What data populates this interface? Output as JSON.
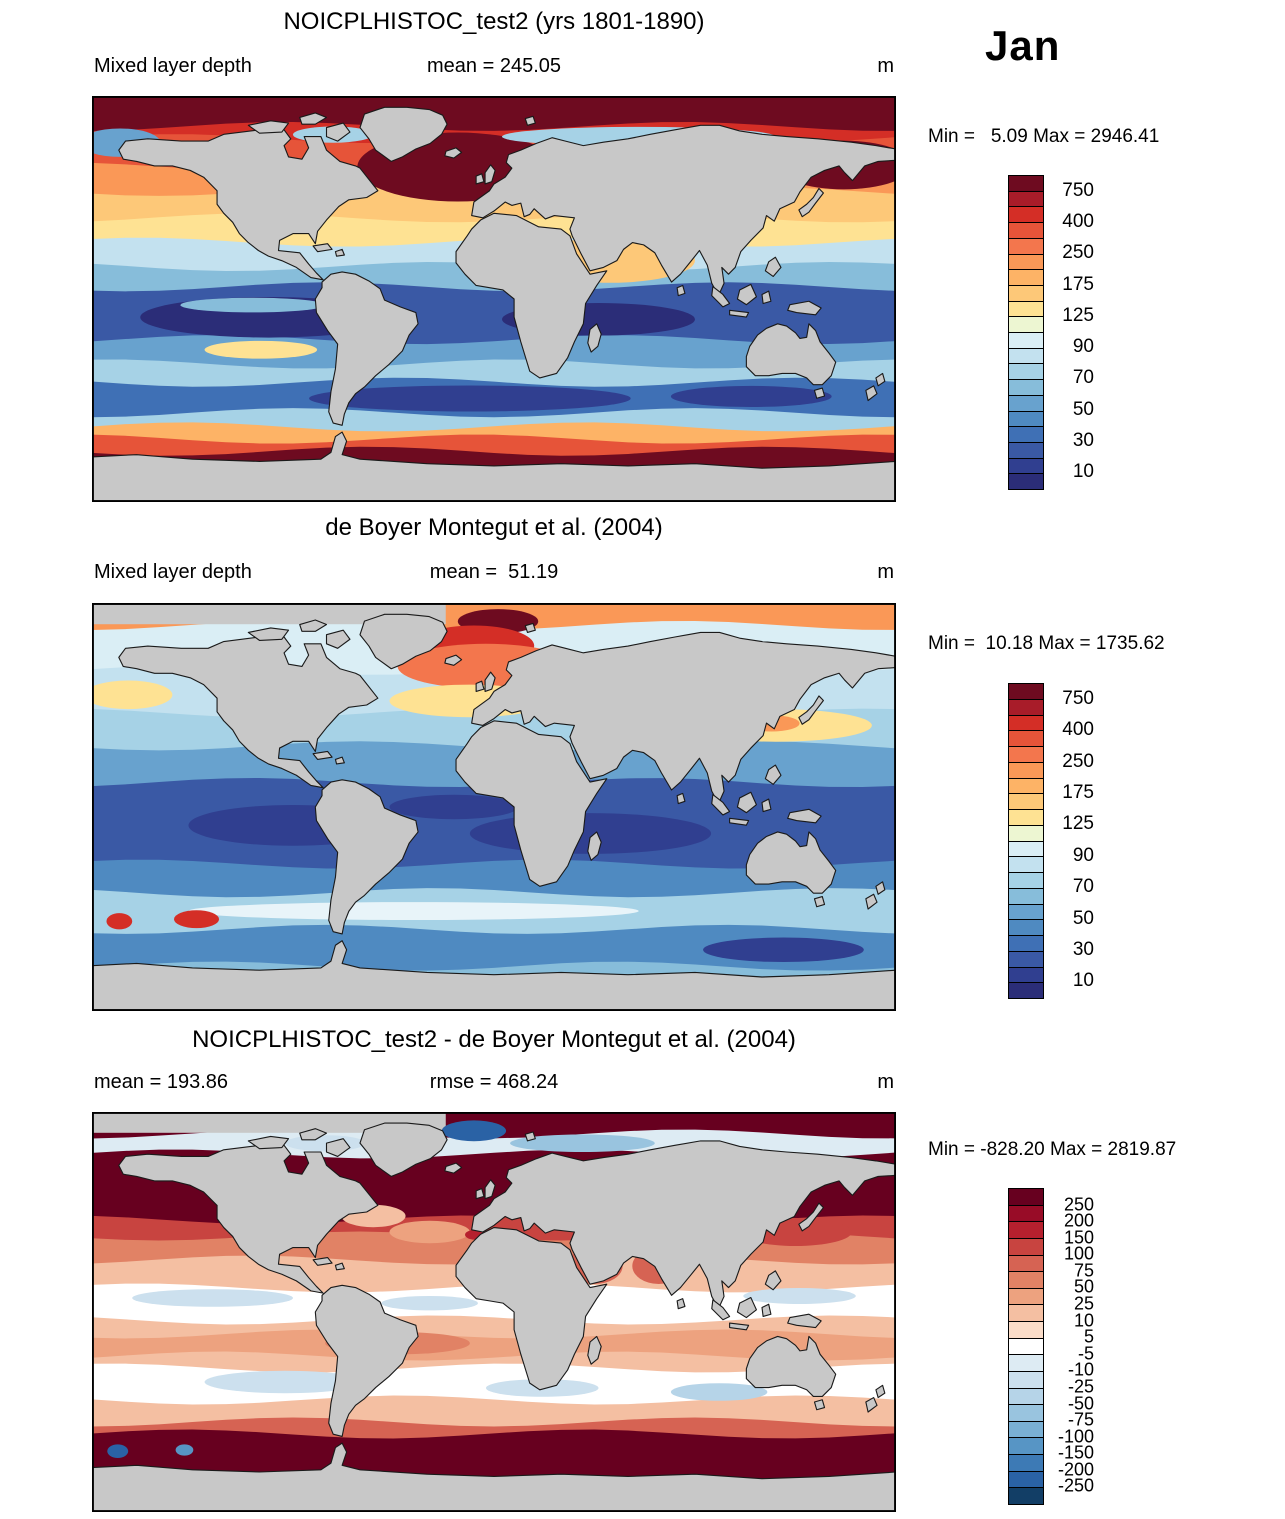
{
  "month_label": "Jan",
  "chart_data": [
    {
      "type": "heatmap",
      "title": "NOICPLHISTOC_test2 (yrs 1801-1890)",
      "left_label": "Mixed layer depth",
      "center_label": "mean = 245.05",
      "unit_label": "m",
      "minmax_label": "Min =   5.09 Max = 2946.41",
      "mean": 245.05,
      "min": 5.09,
      "max": 2946.41,
      "colorbar": {
        "tick_labels": [
          "750",
          "400",
          "250",
          "175",
          "125",
          "90",
          "70",
          "50",
          "30",
          "10"
        ],
        "tick_boundaries": [
          1,
          3,
          5,
          7,
          9,
          11,
          13,
          15,
          17,
          19
        ],
        "colors": [
          "#6e0b20",
          "#a81c29",
          "#d42e26",
          "#e65439",
          "#f3764d",
          "#fa9857",
          "#fdb366",
          "#fdc878",
          "#fee293",
          "#edf6d2",
          "#daeef5",
          "#c3e1ef",
          "#a6d2e6",
          "#87bdda",
          "#68a2ce",
          "#4f8ac1",
          "#3f70b5",
          "#3a59a5",
          "#303f90",
          "#2b2d78"
        ]
      },
      "map": {
        "bands": [
          [
            0.0,
            0.075,
            "#6e0b20"
          ],
          [
            0.075,
            0.105,
            "#d42e26"
          ],
          [
            0.105,
            0.175,
            "#e65439"
          ],
          [
            0.175,
            0.235,
            "#fa9857"
          ],
          [
            0.235,
            0.3,
            "#fdc878"
          ],
          [
            0.3,
            0.36,
            "#fee293"
          ],
          [
            0.36,
            0.42,
            "#c3e1ef"
          ],
          [
            0.42,
            0.47,
            "#87bdda"
          ],
          [
            0.47,
            0.6,
            "#3a59a5"
          ],
          [
            0.6,
            0.66,
            "#68a2ce"
          ],
          [
            0.66,
            0.705,
            "#a6d2e6"
          ],
          [
            0.705,
            0.78,
            "#3f70b5"
          ],
          [
            0.78,
            0.815,
            "#a6d2e6"
          ],
          [
            0.815,
            0.845,
            "#fdb366"
          ],
          [
            0.845,
            0.875,
            "#e65439"
          ],
          [
            0.875,
            0.96,
            "#6e0b20"
          ],
          [
            0.96,
            1.0,
            "#a81c29"
          ]
        ],
        "features": [
          [
            "e",
            0.455,
            0.175,
            0.125,
            0.085,
            "#6e0b20"
          ],
          [
            "e",
            0.935,
            0.17,
            0.085,
            0.06,
            "#6e0b20"
          ],
          [
            "e",
            0.035,
            0.115,
            0.05,
            0.035,
            "#68a2ce"
          ],
          [
            "e",
            0.68,
            0.1,
            0.17,
            0.024,
            "#a6d2e6"
          ],
          [
            "e",
            0.3,
            0.095,
            0.05,
            0.02,
            "#a6d2e6"
          ],
          [
            "e",
            0.22,
            0.545,
            0.16,
            0.05,
            "#2b2d78"
          ],
          [
            "e",
            0.63,
            0.55,
            0.12,
            0.04,
            "#2b2d78"
          ],
          [
            "e",
            0.2,
            0.515,
            0.09,
            0.018,
            "#87bdda"
          ],
          [
            "e",
            0.645,
            0.405,
            0.105,
            0.055,
            "#fdc878"
          ],
          [
            "e",
            0.21,
            0.625,
            0.07,
            0.022,
            "#fee293"
          ],
          [
            "e",
            0.47,
            0.745,
            0.2,
            0.032,
            "#303f90"
          ],
          [
            "e",
            0.82,
            0.74,
            0.1,
            0.026,
            "#303f90"
          ],
          [
            "e",
            0.065,
            0.945,
            0.03,
            0.012,
            "#fa9857"
          ],
          [
            "e",
            0.175,
            0.952,
            0.025,
            0.01,
            "#fa9857"
          ],
          [
            "e",
            0.56,
            0.945,
            0.03,
            0.012,
            "#fa9857"
          ]
        ]
      }
    },
    {
      "type": "heatmap",
      "title": "de Boyer Montegut et al. (2004)",
      "left_label": "Mixed layer depth",
      "center_label": "mean =  51.19",
      "unit_label": "m",
      "minmax_label": "Min =  10.18 Max = 1735.62",
      "mean": 51.19,
      "min": 10.18,
      "max": 1735.62,
      "colorbar": {
        "tick_labels": [
          "750",
          "400",
          "250",
          "175",
          "125",
          "90",
          "70",
          "50",
          "30",
          "10"
        ],
        "tick_boundaries": [
          1,
          3,
          5,
          7,
          9,
          11,
          13,
          15,
          17,
          19
        ],
        "colors": [
          "#6e0b20",
          "#a81c29",
          "#d42e26",
          "#e65439",
          "#f3764d",
          "#fa9857",
          "#fdb366",
          "#fdc878",
          "#fee293",
          "#edf6d2",
          "#daeef5",
          "#c3e1ef",
          "#a6d2e6",
          "#87bdda",
          "#68a2ce",
          "#4f8ac1",
          "#3f70b5",
          "#3a59a5",
          "#303f90",
          "#2b2d78"
        ]
      },
      "map": {
        "bands": [
          [
            0.0,
            0.055,
            "#fa9857"
          ],
          [
            0.055,
            0.165,
            "#daeef5"
          ],
          [
            0.165,
            0.27,
            "#c3e1ef"
          ],
          [
            0.27,
            0.35,
            "#a6d2e6"
          ],
          [
            0.35,
            0.44,
            "#68a2ce"
          ],
          [
            0.44,
            0.64,
            "#3a59a5"
          ],
          [
            0.64,
            0.71,
            "#4f8ac1"
          ],
          [
            0.71,
            0.8,
            "#a6d2e6"
          ],
          [
            0.8,
            0.89,
            "#4f8ac1"
          ],
          [
            0.89,
            1.0,
            "#87bdda"
          ]
        ],
        "features": [
          [
            "r",
            0.0,
            0.0,
            0.44,
            0.052,
            "#c8c8c8"
          ],
          [
            "e",
            0.505,
            0.045,
            0.05,
            0.03,
            "#6e0b20"
          ],
          [
            "e",
            0.475,
            0.105,
            0.075,
            0.05,
            "#d42e26"
          ],
          [
            "e",
            0.49,
            0.155,
            0.11,
            0.055,
            "#f3764d"
          ],
          [
            "e",
            0.47,
            0.24,
            0.1,
            0.04,
            "#fee293"
          ],
          [
            "e",
            0.045,
            0.225,
            0.055,
            0.035,
            "#fee293"
          ],
          [
            "e",
            0.85,
            0.3,
            0.12,
            0.04,
            "#fee293"
          ],
          [
            "e",
            0.845,
            0.295,
            0.035,
            0.02,
            "#fa9857"
          ],
          [
            "e",
            0.25,
            0.545,
            0.13,
            0.05,
            "#303f90"
          ],
          [
            "e",
            0.62,
            0.565,
            0.15,
            0.05,
            "#303f90"
          ],
          [
            "e",
            0.45,
            0.5,
            0.08,
            0.03,
            "#303f90"
          ],
          [
            "e",
            0.4,
            0.755,
            0.28,
            0.022,
            "#e8f4f9"
          ],
          [
            "e",
            0.034,
            0.78,
            0.016,
            0.02,
            "#d42e26"
          ],
          [
            "e",
            0.13,
            0.775,
            0.028,
            0.022,
            "#d42e26"
          ],
          [
            "e",
            0.86,
            0.85,
            0.1,
            0.03,
            "#303f90"
          ]
        ]
      }
    },
    {
      "type": "heatmap",
      "title": "NOICPLHISTOC_test2 - de Boyer Montegut et al. (2004)",
      "left_label": "mean = 193.86",
      "center_label": "rmse = 468.24",
      "unit_label": "m",
      "minmax_label": "Min = -828.20 Max = 2819.87",
      "mean": 193.86,
      "rmse": 468.24,
      "min": -828.2,
      "max": 2819.87,
      "colorbar": {
        "tick_labels": [
          "250",
          "200",
          "150",
          "100",
          "75",
          "50",
          "25",
          "10",
          "5",
          "-5",
          "-10",
          "-25",
          "-50",
          "-75",
          "-100",
          "-150",
          "-200",
          "-250"
        ],
        "tick_boundaries": [
          1,
          2,
          3,
          4,
          5,
          6,
          7,
          8,
          9,
          10,
          11,
          12,
          13,
          14,
          15,
          16,
          17,
          18
        ],
        "colors": [
          "#67001f",
          "#980c27",
          "#b6202e",
          "#c84440",
          "#d66353",
          "#e18265",
          "#eda27f",
          "#f4bfa2",
          "#fadcc8",
          "#ffffff",
          "#ddebf3",
          "#cce0ee",
          "#b6d4e8",
          "#99c4df",
          "#7ab0d4",
          "#5795c5",
          "#3d7ab5",
          "#2a62a5",
          "#123e66"
        ]
      },
      "map": {
        "bands": [
          [
            0.0,
            0.055,
            "#67001f"
          ],
          [
            0.055,
            0.105,
            "#ddebf3"
          ],
          [
            0.105,
            0.27,
            "#67001f"
          ],
          [
            0.27,
            0.31,
            "#c84440"
          ],
          [
            0.31,
            0.37,
            "#e18265"
          ],
          [
            0.37,
            0.44,
            "#f4bfa2"
          ],
          [
            0.44,
            0.52,
            "#ffffff"
          ],
          [
            0.52,
            0.555,
            "#f4bfa2"
          ],
          [
            0.555,
            0.61,
            "#eda27f"
          ],
          [
            0.61,
            0.64,
            "#f4bfa2"
          ],
          [
            0.64,
            0.72,
            "#ffffff"
          ],
          [
            0.72,
            0.775,
            "#f4bfa2"
          ],
          [
            0.775,
            0.805,
            "#d66353"
          ],
          [
            0.805,
            0.93,
            "#67001f"
          ],
          [
            0.93,
            1.0,
            "#d66353"
          ]
        ],
        "features": [
          [
            "r",
            0.0,
            0.0,
            0.44,
            0.052,
            "#c8c8c8"
          ],
          [
            "e",
            0.475,
            0.047,
            0.04,
            0.026,
            "#2a62a5"
          ],
          [
            "e",
            0.61,
            0.078,
            0.09,
            0.022,
            "#99c4df"
          ],
          [
            "e",
            0.29,
            0.078,
            0.05,
            0.02,
            "#cce0ee"
          ],
          [
            "e",
            0.35,
            0.26,
            0.04,
            0.028,
            "#f4bfa2"
          ],
          [
            "e",
            0.42,
            0.3,
            0.05,
            0.028,
            "#eda27f"
          ],
          [
            "e",
            0.476,
            0.307,
            0.012,
            0.012,
            "#b6202e"
          ],
          [
            "e",
            0.625,
            0.385,
            0.035,
            0.045,
            "#d66353"
          ],
          [
            "e",
            0.705,
            0.385,
            0.033,
            0.045,
            "#d66353"
          ],
          [
            "e",
            0.875,
            0.3,
            0.07,
            0.035,
            "#c84440"
          ],
          [
            "e",
            0.15,
            0.465,
            0.1,
            0.022,
            "#cce0ee"
          ],
          [
            "e",
            0.42,
            0.478,
            0.06,
            0.018,
            "#cce0ee"
          ],
          [
            "e",
            0.88,
            0.46,
            0.07,
            0.02,
            "#cce0ee"
          ],
          [
            "e",
            0.38,
            0.578,
            0.09,
            0.028,
            "#e18265"
          ],
          [
            "e",
            0.24,
            0.675,
            0.1,
            0.028,
            "#cce0ee"
          ],
          [
            "e",
            0.56,
            0.69,
            0.07,
            0.022,
            "#cce0ee"
          ],
          [
            "e",
            0.78,
            0.7,
            0.06,
            0.022,
            "#b6d4e8"
          ],
          [
            "e",
            0.032,
            0.848,
            0.013,
            0.017,
            "#2a62a5"
          ],
          [
            "e",
            0.115,
            0.845,
            0.011,
            0.014,
            "#5795c5"
          ],
          [
            "e",
            0.72,
            0.935,
            0.06,
            0.015,
            "#cce0ee"
          ]
        ]
      }
    }
  ],
  "style": {
    "land_color": "#c8c8c8",
    "coast_color": "#1a1a1a",
    "frame_color": "#000000"
  }
}
